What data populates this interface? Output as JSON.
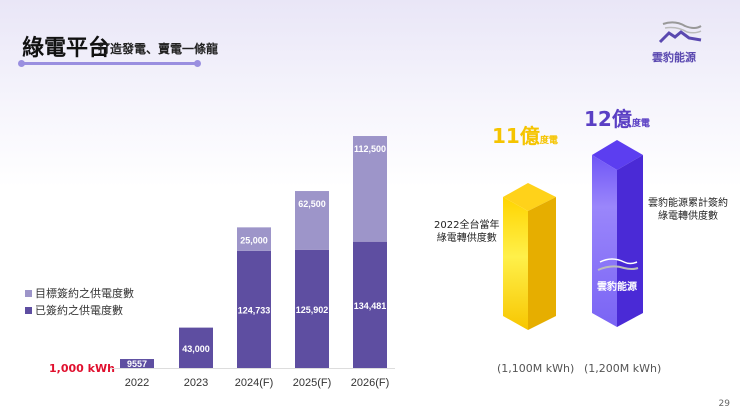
{
  "header": {
    "title": "綠電平台",
    "subtitle": "打造發電、賣電一條龍"
  },
  "brand": {
    "name": "雲豹能源"
  },
  "chart_data": {
    "type": "bar",
    "stacked": true,
    "categories": [
      "2022",
      "2023",
      "2024(F)",
      "2025(F)",
      "2026(F)"
    ],
    "unit_label": "1,000 kWh",
    "series": [
      {
        "name": "已簽約之供電度數",
        "color": "#5e4ea1",
        "values": [
          9557,
          43000,
          124733,
          125902,
          134481
        ],
        "labels": [
          "9557",
          "43,000",
          "124,733",
          "125,902",
          "134,481"
        ]
      },
      {
        "name": "目標簽約之供電度數",
        "color": "#9d95c9",
        "values": [
          0,
          0,
          25000,
          62500,
          112500
        ],
        "labels": [
          "",
          "",
          "25,000",
          "62,500",
          "112,500"
        ]
      }
    ],
    "legend": "left"
  },
  "comparison": {
    "left": {
      "big": "11億",
      "small": "度電",
      "caption_line1": "2022全台當年",
      "caption_line2": "綠電轉供度數",
      "value": "(1,100M kWh)",
      "color": "#f5c400"
    },
    "right": {
      "big": "12億",
      "small": "度電",
      "caption_line1": "雲豹能源累計簽約",
      "caption_line2": "綠電轉供度數",
      "value": "(1,200M kWh)",
      "bar_brand": "雲豹能源",
      "color": "#6a4af0"
    }
  },
  "page_number": "29"
}
